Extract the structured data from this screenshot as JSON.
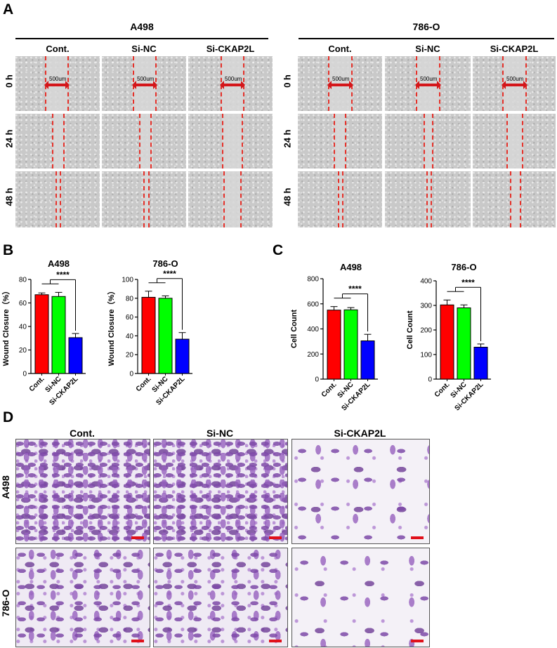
{
  "panels": {
    "A": "A",
    "B": "B",
    "C": "C",
    "D": "D"
  },
  "panel_a": {
    "groups": [
      {
        "title": "A498",
        "columns": [
          "Cont.",
          "Si-NC",
          "Si-CKAP2L"
        ]
      },
      {
        "title": "786-O",
        "columns": [
          "Cont.",
          "Si-NC",
          "Si-CKAP2L"
        ]
      }
    ],
    "rows": [
      "0 h",
      "24 h",
      "48 h"
    ],
    "gap_label": "500um"
  },
  "panel_d": {
    "columns": [
      "Cont.",
      "Si-NC",
      "Si-CKAP2L"
    ],
    "rows": [
      "A498",
      "786-O"
    ]
  },
  "colors": {
    "cont": "#ff0000",
    "si_nc": "#00ff00",
    "si_ckap2l": "#0000ff",
    "scratch_line": "#e5312a",
    "arrow": "#d4161a"
  },
  "chart_data": [
    {
      "type": "bar",
      "title": "A498",
      "ylabel": "Wound Closure（%）",
      "categories": [
        "Cont.",
        "Si-NC",
        "Si-CKAP2L"
      ],
      "values": [
        67,
        65.5,
        30.5
      ],
      "errors": [
        1.5,
        3.5,
        3.5
      ],
      "ylim": [
        0,
        80
      ],
      "yticks": [
        "0",
        "20",
        "40",
        "60",
        "80"
      ],
      "significance": "****"
    },
    {
      "type": "bar",
      "title": "786-O",
      "ylabel": "Wound Closure（%）",
      "categories": [
        "Cont.",
        "Si-NC",
        "Si-CKAP2L"
      ],
      "values": [
        81,
        80,
        36.5
      ],
      "errors": [
        6.5,
        2.5,
        7
      ],
      "ylim": [
        0,
        100
      ],
      "yticks": [
        "0",
        "20",
        "40",
        "60",
        "80",
        "100"
      ],
      "significance": "****"
    },
    {
      "type": "bar",
      "title": "A498",
      "ylabel": "Cell Count",
      "categories": [
        "Cont.",
        "Si-NC",
        "Si-CKAP2L"
      ],
      "values": [
        550,
        552,
        305
      ],
      "errors": [
        28,
        18,
        52
      ],
      "ylim": [
        0,
        800
      ],
      "yticks": [
        "0",
        "200",
        "400",
        "600",
        "800"
      ],
      "significance": "****"
    },
    {
      "type": "bar",
      "title": "786-O",
      "ylabel": "Cell Count",
      "categories": [
        "Cont.",
        "Si-NC",
        "Si-CKAP2L"
      ],
      "values": [
        302,
        290,
        130
      ],
      "errors": [
        20,
        12,
        13
      ],
      "ylim": [
        0,
        400
      ],
      "yticks": [
        "0",
        "100",
        "200",
        "300",
        "400"
      ],
      "significance": "****"
    }
  ]
}
